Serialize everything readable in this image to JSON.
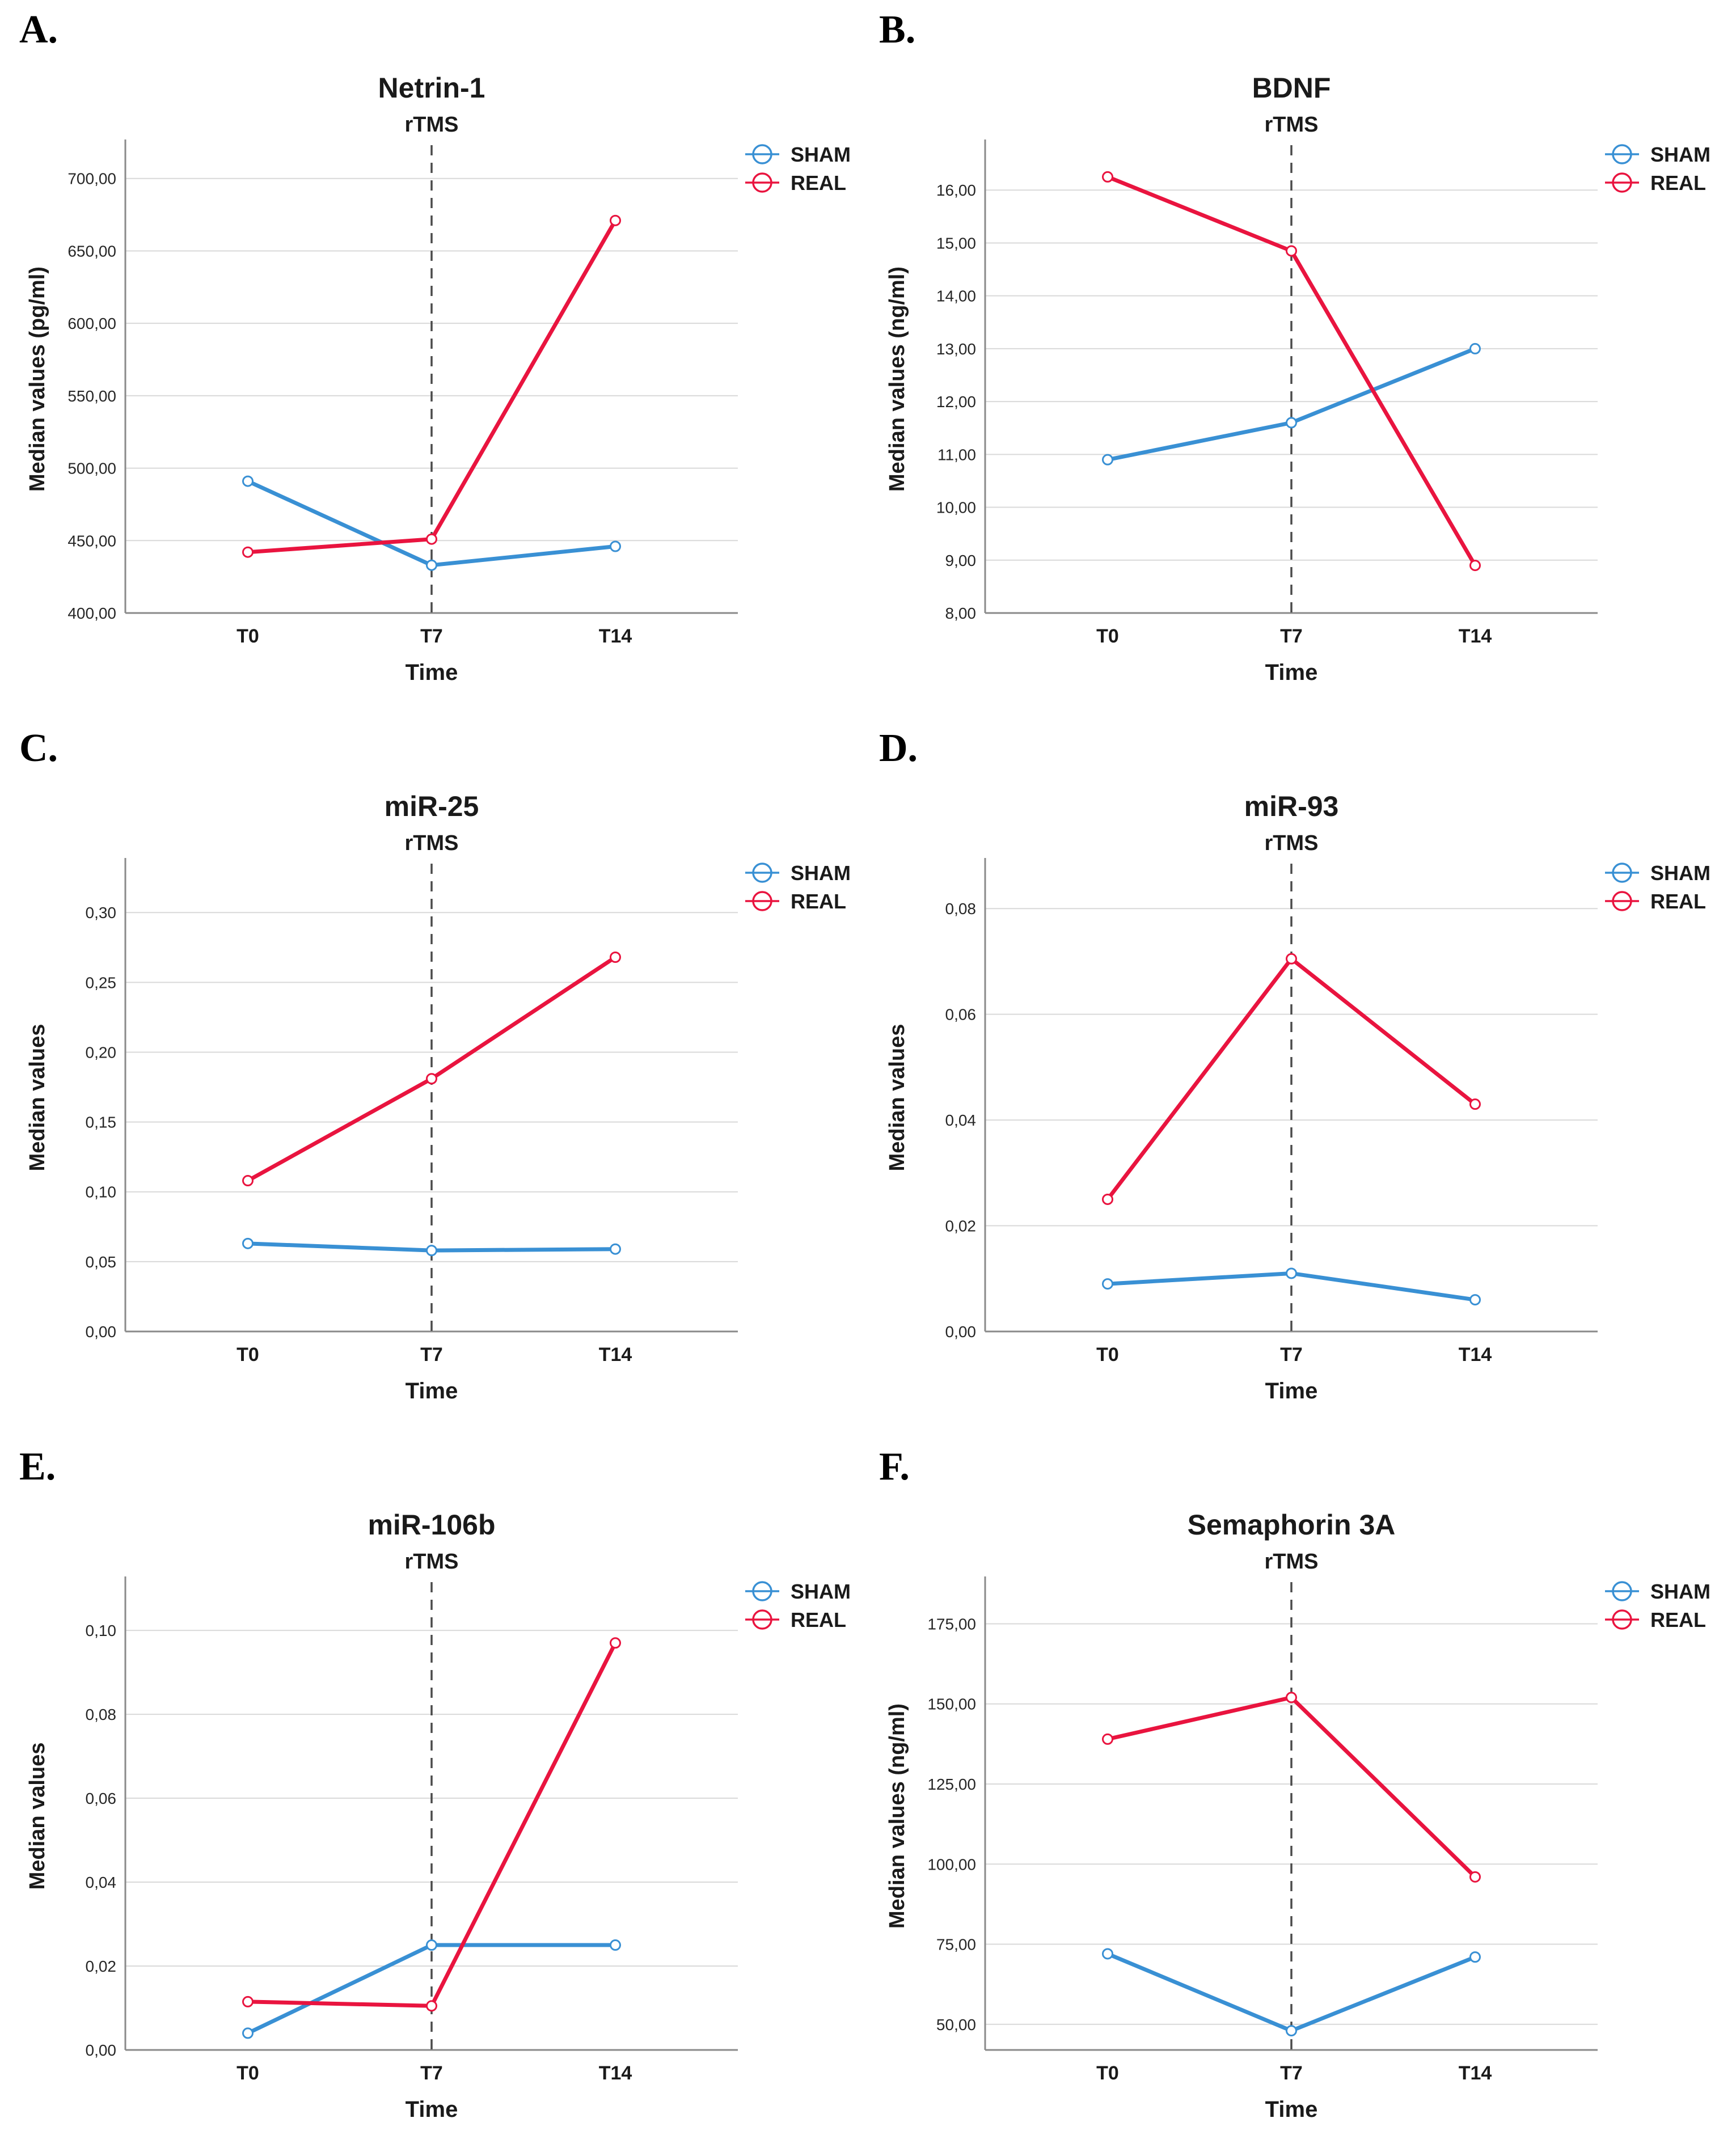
{
  "style": {
    "background": "#FFFFFF",
    "text_color": "#1A1A1A",
    "grid_color": "#D9D9D9",
    "spine_color": "#8A8A8A",
    "dash_color": "#4A4A4A",
    "marker_fill": "#FFFFFF",
    "sham_color": "#3990D4",
    "real_color": "#E9143F"
  },
  "chart_data": [
    {
      "panel_letter": "A.",
      "type": "line",
      "title": "Netrin-1",
      "xlabel": "Time",
      "ylabel": "Median values (pg/ml)",
      "categories": [
        "T0",
        "T7",
        "T14"
      ],
      "series": [
        {
          "name": "SHAM",
          "color": "#3990D4",
          "values": [
            491,
            433,
            446
          ]
        },
        {
          "name": "REAL",
          "color": "#E9143F",
          "values": [
            442,
            451,
            671
          ]
        }
      ],
      "yticks": [
        400,
        450,
        500,
        550,
        600,
        650,
        700
      ],
      "ytick_labels": [
        "400,00",
        "450,00",
        "500,00",
        "550,00",
        "600,00",
        "650,00",
        "700,00"
      ],
      "ylim": [
        400,
        723
      ],
      "annotation": {
        "label": "rTMS",
        "x_index": 1
      },
      "legend_position": "top-right",
      "grid": true
    },
    {
      "panel_letter": "B.",
      "type": "line",
      "title": "BDNF",
      "xlabel": "Time",
      "ylabel": "Median values (ng/ml)",
      "categories": [
        "T0",
        "T7",
        "T14"
      ],
      "series": [
        {
          "name": "SHAM",
          "color": "#3990D4",
          "values": [
            10.9,
            11.6,
            13.0
          ]
        },
        {
          "name": "REAL",
          "color": "#E9143F",
          "values": [
            16.25,
            14.85,
            8.9
          ]
        }
      ],
      "yticks": [
        8,
        9,
        10,
        11,
        12,
        13,
        14,
        15,
        16
      ],
      "ytick_labels": [
        "8,00",
        "9,00",
        "10,00",
        "11,00",
        "12,00",
        "13,00",
        "14,00",
        "15,00",
        "16,00"
      ],
      "ylim": [
        8,
        16.85
      ],
      "annotation": {
        "label": "rTMS",
        "x_index": 1
      },
      "legend_position": "top-right",
      "grid": true
    },
    {
      "panel_letter": "C.",
      "type": "line",
      "title": "miR-25",
      "xlabel": "Time",
      "ylabel": "Median values",
      "categories": [
        "T0",
        "T7",
        "T14"
      ],
      "series": [
        {
          "name": "SHAM",
          "color": "#3990D4",
          "values": [
            0.063,
            0.058,
            0.059
          ]
        },
        {
          "name": "REAL",
          "color": "#E9143F",
          "values": [
            0.108,
            0.181,
            0.268
          ]
        }
      ],
      "yticks": [
        0.0,
        0.05,
        0.1,
        0.15,
        0.2,
        0.25,
        0.3
      ],
      "ytick_labels": [
        "0,00",
        "0,05",
        "0,10",
        "0,15",
        "0,20",
        "0,25",
        "0,30"
      ],
      "ylim": [
        0,
        0.335
      ],
      "annotation": {
        "label": "rTMS",
        "x_index": 1
      },
      "legend_position": "top-right",
      "grid": true
    },
    {
      "panel_letter": "D.",
      "type": "line",
      "title": "miR-93",
      "xlabel": "Time",
      "ylabel": "Median values",
      "categories": [
        "T0",
        "T7",
        "T14"
      ],
      "series": [
        {
          "name": "SHAM",
          "color": "#3990D4",
          "values": [
            0.009,
            0.011,
            0.006
          ]
        },
        {
          "name": "REAL",
          "color": "#E9143F",
          "values": [
            0.025,
            0.0705,
            0.043
          ]
        }
      ],
      "yticks": [
        0.0,
        0.02,
        0.04,
        0.06,
        0.08
      ],
      "ytick_labels": [
        "0,00",
        "0,02",
        "0,04",
        "0,06",
        "0,08"
      ],
      "ylim": [
        0,
        0.0885
      ],
      "annotation": {
        "label": "rTMS",
        "x_index": 1
      },
      "legend_position": "top-right",
      "grid": true
    },
    {
      "panel_letter": "E.",
      "type": "line",
      "title": "miR-106b",
      "xlabel": "Time",
      "ylabel": "Median values",
      "categories": [
        "T0",
        "T7",
        "T14"
      ],
      "series": [
        {
          "name": "SHAM",
          "color": "#3990D4",
          "values": [
            0.004,
            0.025,
            0.025
          ]
        },
        {
          "name": "REAL",
          "color": "#E9143F",
          "values": [
            0.0115,
            0.0105,
            0.097
          ]
        }
      ],
      "yticks": [
        0.0,
        0.02,
        0.04,
        0.06,
        0.08,
        0.1
      ],
      "ytick_labels": [
        "0,00",
        "0,02",
        "0,04",
        "0,06",
        "0,08",
        "0,10"
      ],
      "ylim": [
        0,
        0.1115
      ],
      "annotation": {
        "label": "rTMS",
        "x_index": 1
      },
      "legend_position": "top-right",
      "grid": true
    },
    {
      "panel_letter": "F.",
      "type": "line",
      "title": "Semaphorin 3A",
      "xlabel": "Time",
      "ylabel": "Median values (ng/ml)",
      "categories": [
        "T0",
        "T7",
        "T14"
      ],
      "series": [
        {
          "name": "SHAM",
          "color": "#3990D4",
          "values": [
            72,
            48,
            71
          ]
        },
        {
          "name": "REAL",
          "color": "#E9143F",
          "values": [
            139,
            152,
            96
          ]
        }
      ],
      "yticks": [
        50,
        75,
        100,
        125,
        150,
        175
      ],
      "ytick_labels": [
        "50,00",
        "75,00",
        "100,00",
        "125,00",
        "150,00",
        "175,00"
      ],
      "ylim": [
        42,
        188
      ],
      "annotation": {
        "label": "rTMS",
        "x_index": 1
      },
      "legend_position": "top-right",
      "grid": true
    }
  ]
}
